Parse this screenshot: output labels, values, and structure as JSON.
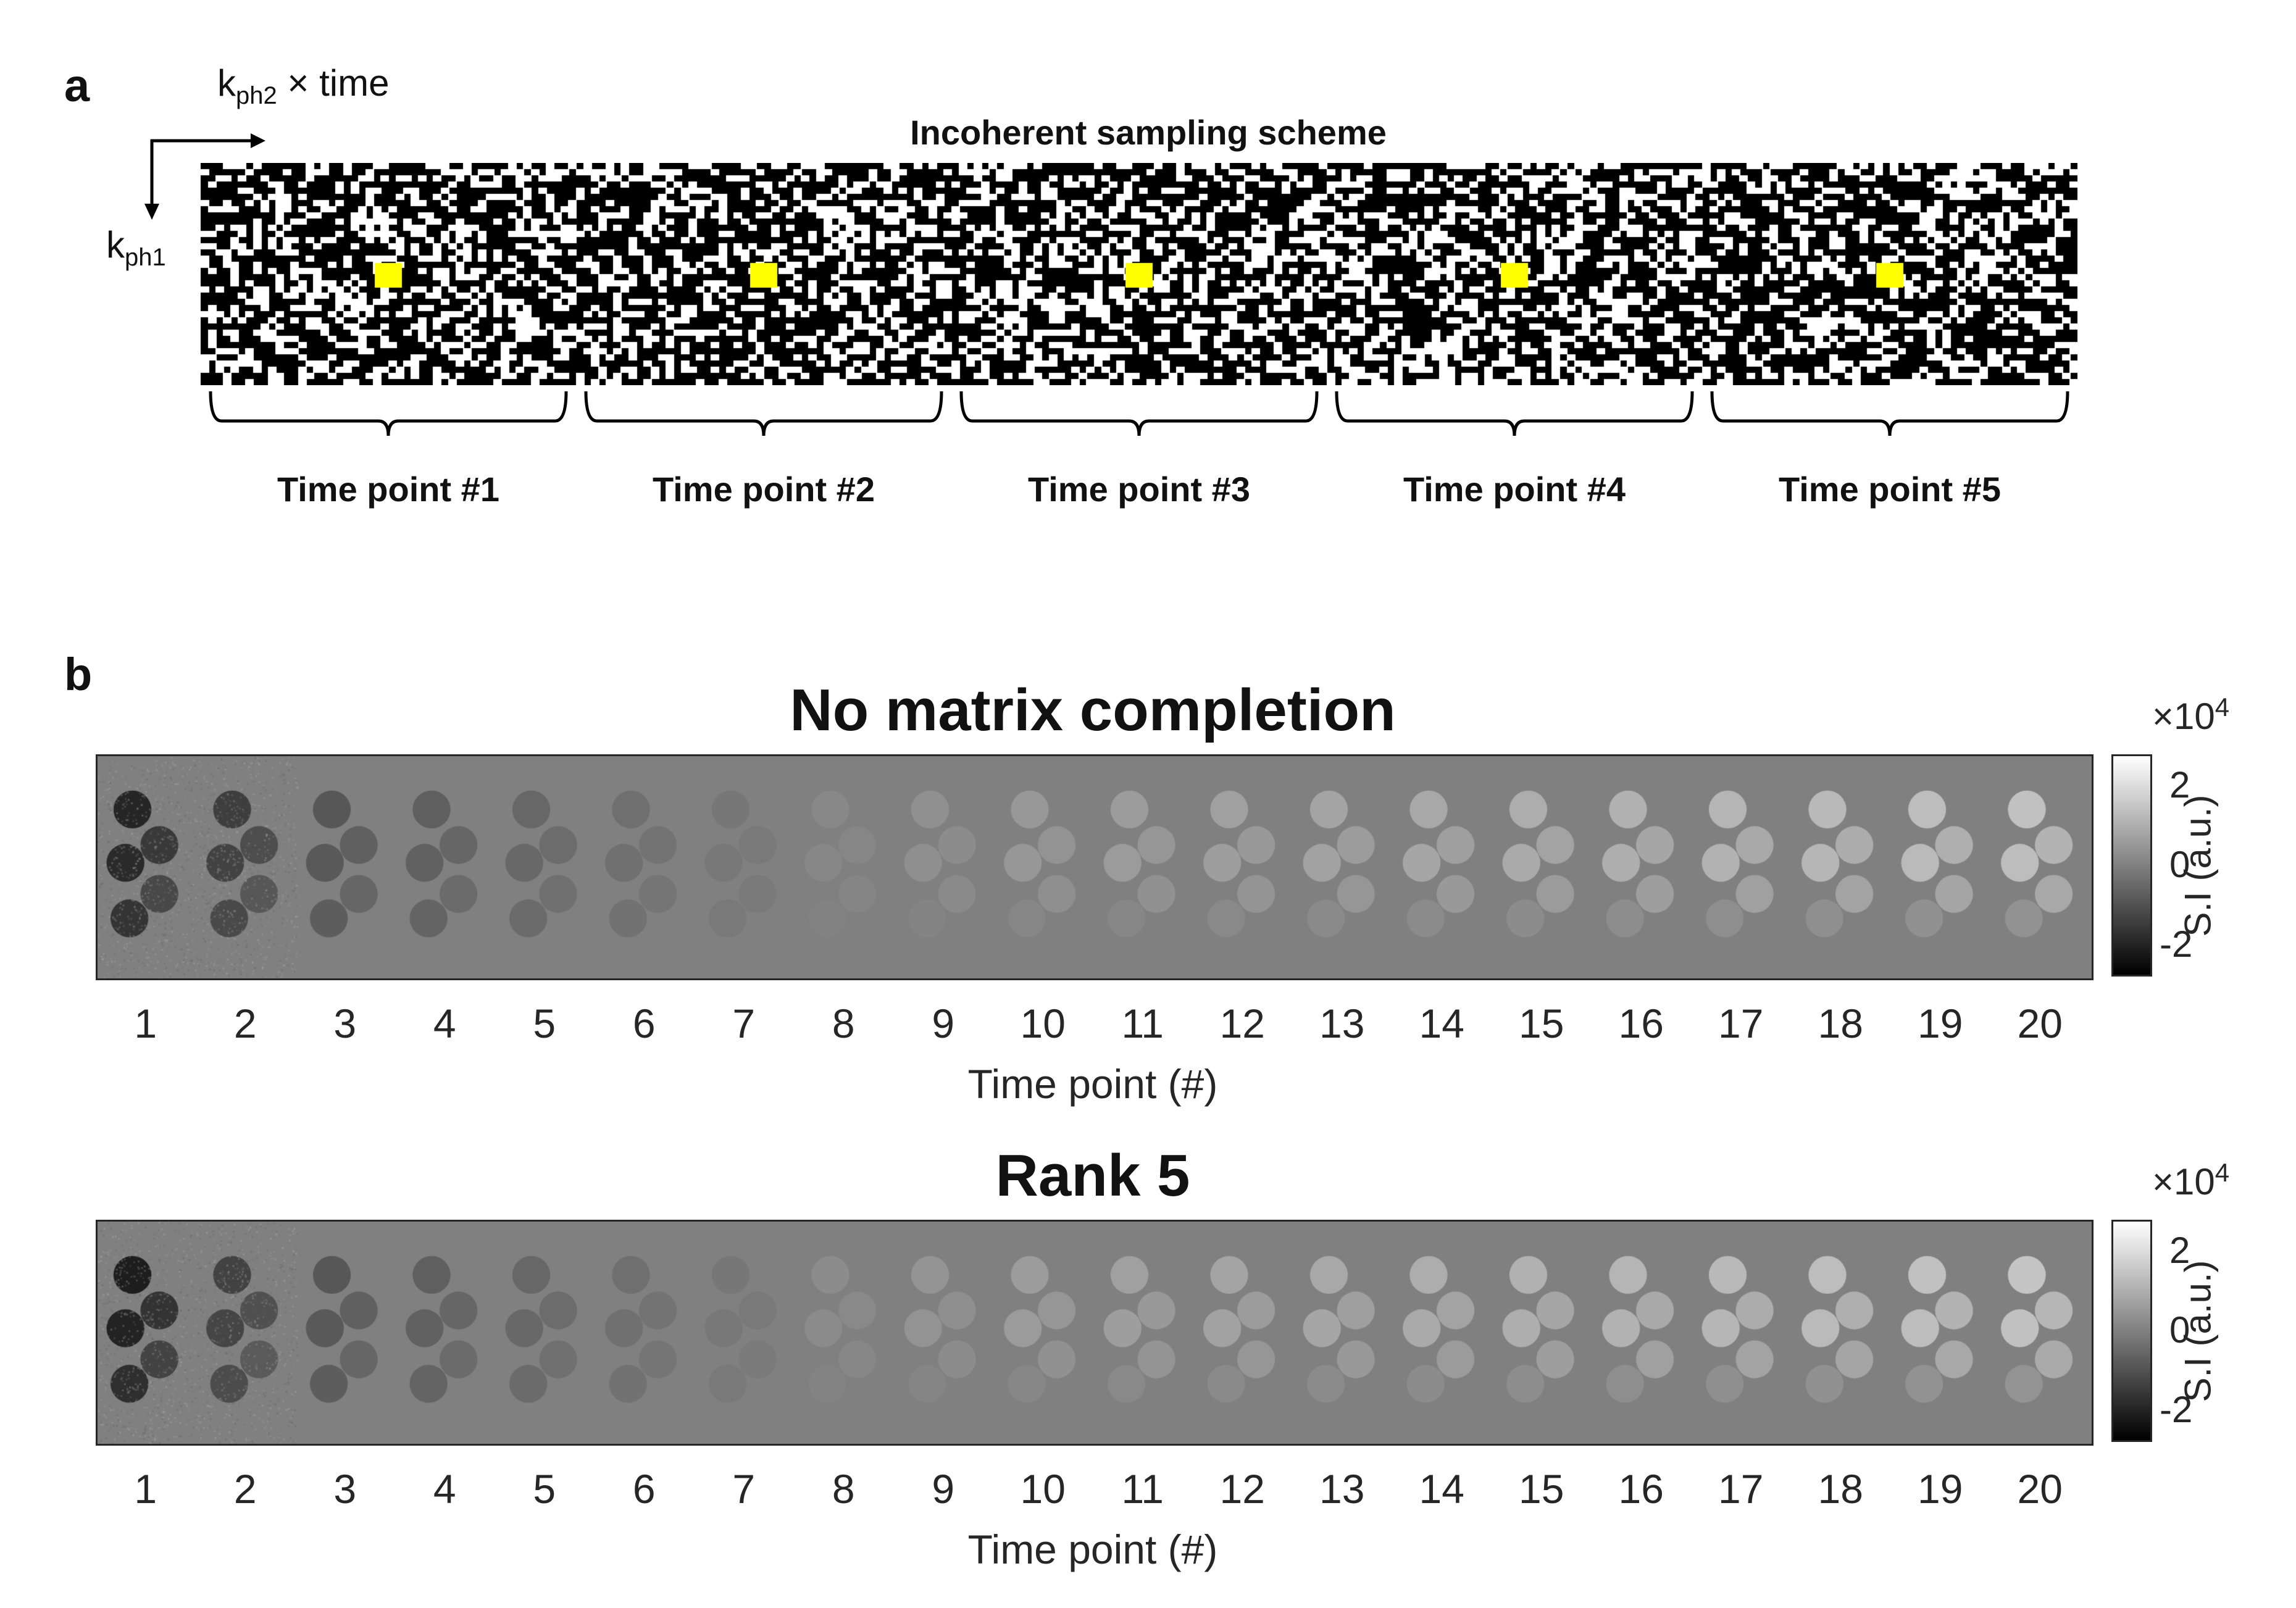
{
  "figure": {
    "panel_a_label": "a",
    "panel_b_label": "b",
    "axes_labels": {
      "horizontal_base": "k",
      "horizontal_sub": "ph2",
      "horizontal_suffix": " × time",
      "vertical_base": "k",
      "vertical_sub": "ph1"
    },
    "sampling_title": "Incoherent sampling scheme",
    "time_point_labels": [
      "Time point #1",
      "Time point #2",
      "Time point #3",
      "Time point #4",
      "Time point #5"
    ],
    "colors": {
      "sample": "#ffffff",
      "unsampled": "#000000",
      "center": "#ffff00",
      "image_bg": "#808080"
    }
  },
  "chart_data": [
    {
      "type": "heatmap",
      "title": "No matrix completion",
      "xlabel": "Time point (#)",
      "categories": [
        "1",
        "2",
        "3",
        "4",
        "5",
        "6",
        "7",
        "8",
        "9",
        "10",
        "11",
        "12",
        "13",
        "14",
        "15",
        "16",
        "17",
        "18",
        "19",
        "20"
      ],
      "colorbar": {
        "label": "S.I (a.u.)",
        "ticks": [
          "2",
          "0",
          "-2"
        ],
        "exponent_base": "×10",
        "exponent": "4",
        "range": [
          -2.8,
          2.8
        ]
      },
      "intensity": [
        -2.2,
        -1.6,
        -1.0,
        -0.8,
        -0.6,
        -0.4,
        -0.2,
        0.2,
        0.4,
        0.6,
        0.7,
        0.8,
        0.9,
        1.0,
        1.1,
        1.2,
        1.3,
        1.4,
        1.5,
        1.6
      ]
    },
    {
      "type": "heatmap",
      "title": "Rank 5",
      "xlabel": "Time point (#)",
      "categories": [
        "1",
        "2",
        "3",
        "4",
        "5",
        "6",
        "7",
        "8",
        "9",
        "10",
        "11",
        "12",
        "13",
        "14",
        "15",
        "16",
        "17",
        "18",
        "19",
        "20"
      ],
      "colorbar": {
        "label": "S.I (a.u.)",
        "ticks": [
          "2",
          "0",
          "-2"
        ],
        "exponent_base": "×10",
        "exponent": "4",
        "range": [
          -2.8,
          2.8
        ]
      },
      "intensity": [
        -2.4,
        -1.5,
        -1.0,
        -0.8,
        -0.6,
        -0.4,
        -0.2,
        0.3,
        0.5,
        0.7,
        0.8,
        0.9,
        1.0,
        1.1,
        1.2,
        1.3,
        1.4,
        1.5,
        1.6,
        1.7
      ]
    }
  ]
}
